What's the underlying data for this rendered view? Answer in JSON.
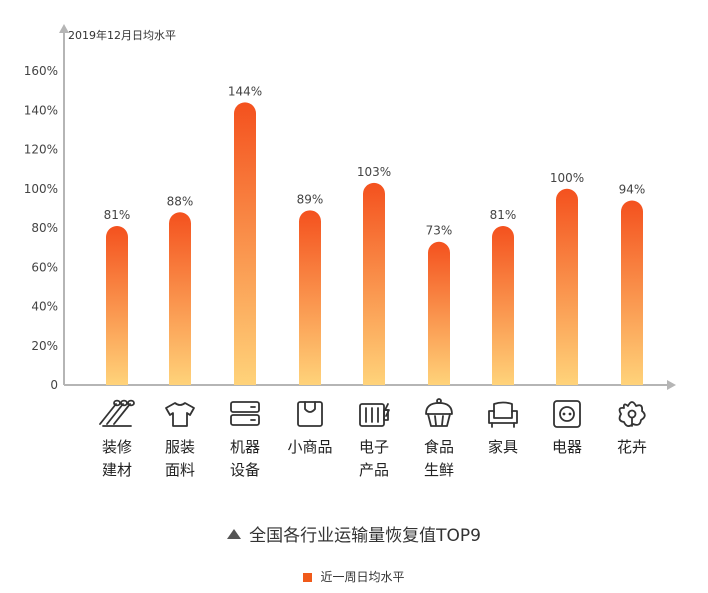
{
  "chart_data": {
    "type": "bar",
    "title": "全国各行业运输量恢复值TOP9",
    "unit_label": "2019年12月日均水平",
    "categories": [
      {
        "lines": [
          "装修",
          "建材"
        ],
        "icon": "pipes-icon"
      },
      {
        "lines": [
          "服装",
          "面料"
        ],
        "icon": "tshirt-icon"
      },
      {
        "lines": [
          "机器",
          "设备"
        ],
        "icon": "server-icon"
      },
      {
        "lines": [
          "小商品"
        ],
        "icon": "shopping-bag-icon"
      },
      {
        "lines": [
          "电子",
          "产品"
        ],
        "icon": "battery-icon"
      },
      {
        "lines": [
          "食品",
          "生鲜"
        ],
        "icon": "cupcake-icon"
      },
      {
        "lines": [
          "家具"
        ],
        "icon": "armchair-icon"
      },
      {
        "lines": [
          "电器"
        ],
        "icon": "socket-icon"
      },
      {
        "lines": [
          "花卉"
        ],
        "icon": "flower-icon"
      }
    ],
    "series": [
      {
        "name": "近一周日均水平",
        "values": [
          81,
          88,
          144,
          89,
          103,
          73,
          81,
          100,
          94
        ]
      }
    ],
    "value_labels": [
      "81%",
      "88%",
      "144%",
      "89%",
      "103%",
      "73%",
      "81%",
      "100%",
      "94%"
    ],
    "y_ticks": [
      {
        "value": 0,
        "label": "0"
      },
      {
        "value": 20,
        "label": "20%"
      },
      {
        "value": 40,
        "label": "40%"
      },
      {
        "value": 60,
        "label": "60%"
      },
      {
        "value": 80,
        "label": "80%"
      },
      {
        "value": 100,
        "label": "100%"
      },
      {
        "value": 120,
        "label": "120%"
      },
      {
        "value": 140,
        "label": "140%"
      },
      {
        "value": 160,
        "label": "160%"
      }
    ],
    "ylim": [
      0,
      160
    ],
    "grid": false,
    "legend_position": "bottom-center",
    "colors": {
      "bar_top": "#F4511E",
      "bar_bottom": "#FFD37A",
      "axis": "#B5B5B5",
      "legend": "#F05A1A"
    }
  }
}
